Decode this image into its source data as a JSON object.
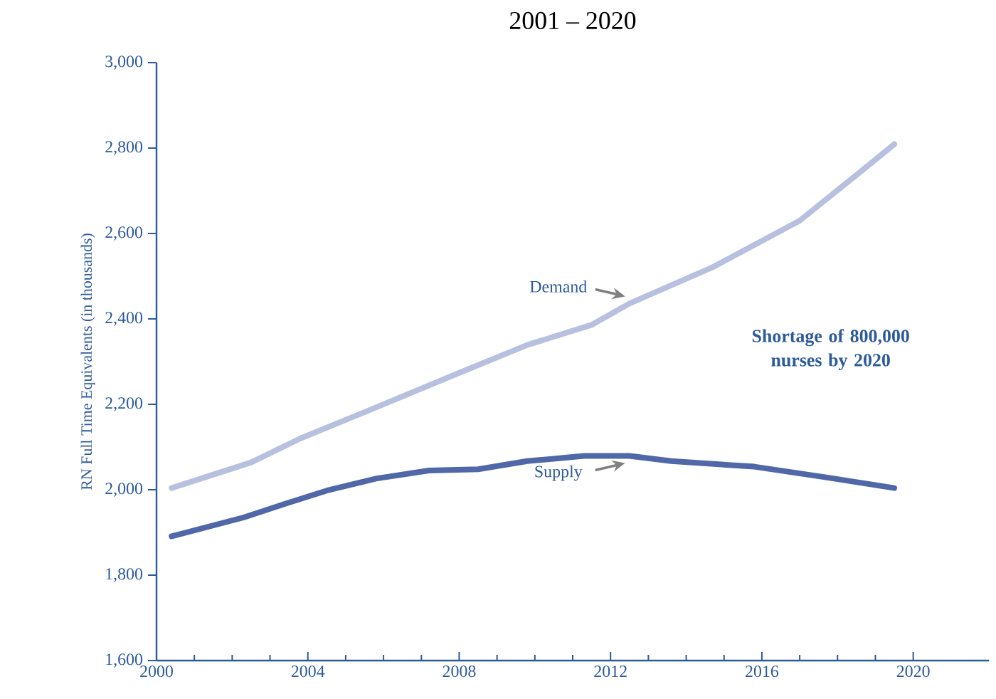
{
  "chart_data": {
    "type": "line",
    "title": "2001 – 2020",
    "ylabel": "RN Full Time Equivalents (in thousands)",
    "xlim": [
      2000,
      2022
    ],
    "xticks": [
      2000,
      2004,
      2008,
      2012,
      2016,
      2020
    ],
    "ylim": [
      1600,
      3000
    ],
    "yticks": [
      {
        "value": 1600,
        "label": "1,600"
      },
      {
        "value": 1800,
        "label": "1,800"
      },
      {
        "value": 2000,
        "label": "2,000"
      },
      {
        "value": 2200,
        "label": "2,200"
      },
      {
        "value": 2400,
        "label": "2,400"
      },
      {
        "value": 2600,
        "label": "2,600"
      },
      {
        "value": 2800,
        "label": "2,800"
      },
      {
        "value": 3000,
        "label": "3,000"
      }
    ],
    "grid": false,
    "legend": false,
    "marker": "none",
    "line_style": "solid",
    "series": [
      {
        "name": "Demand",
        "color": "#b8c0e0",
        "x": [
          2000.4,
          2002.5,
          2003.8,
          2005.7,
          2007.9,
          2009.8,
          2011.5,
          2012.5,
          2014.7,
          2017.0,
          2018.5,
          2019.5
        ],
        "values": [
          2004,
          2064,
          2120,
          2189,
          2270,
          2339,
          2386,
          2436,
          2521,
          2630,
          2737,
          2809
        ]
      },
      {
        "name": "Supply",
        "color": "#5068a8",
        "x": [
          2000.4,
          2002.3,
          2003.4,
          2004.5,
          2005.8,
          2007.2,
          2008.5,
          2009.8,
          2011.3,
          2012.5,
          2013.6,
          2015.8,
          2017.7,
          2019.5
        ],
        "values": [
          1891,
          1935,
          1967,
          1998,
          2026,
          2045,
          2048,
          2067,
          2079,
          2079,
          2067,
          2054,
          2029,
          2004
        ]
      }
    ],
    "annotations": [
      "**Shortage of  800,000 nurses by 2020**"
    ]
  }
}
